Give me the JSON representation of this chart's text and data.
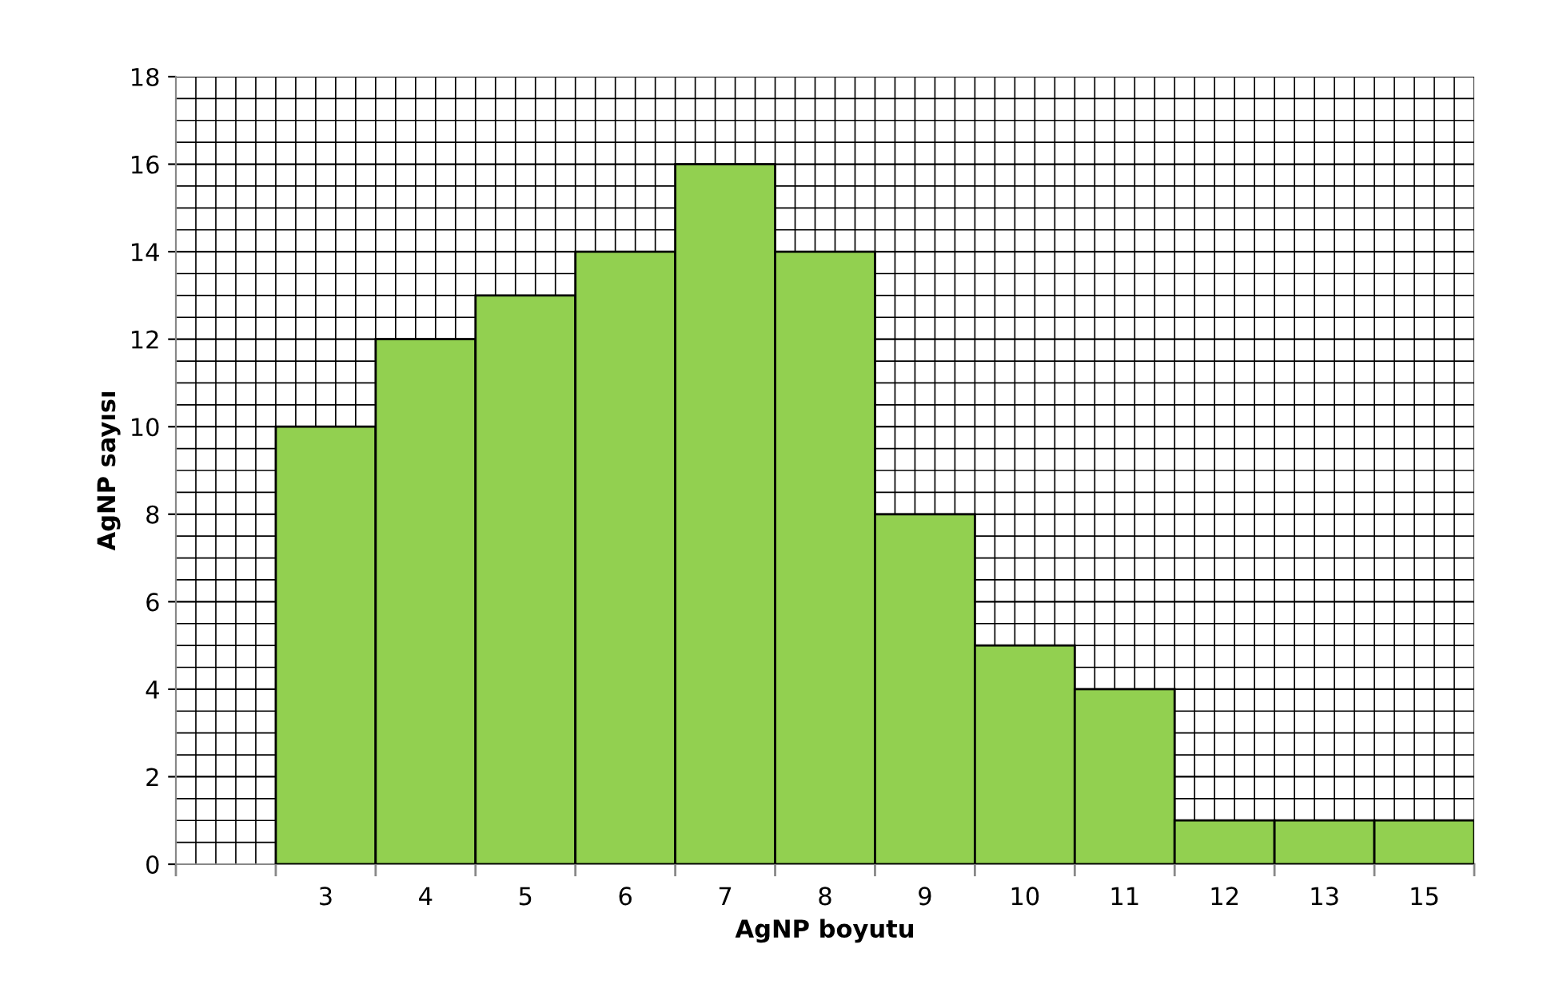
{
  "chart_data": {
    "type": "bar",
    "xlabel": "AgNP boyutu",
    "ylabel": "AgNP sayısı",
    "categories": [
      null,
      "3",
      "4",
      "5",
      "6",
      "7",
      "8",
      "9",
      "10",
      "11",
      "12",
      "13",
      "15"
    ],
    "values": [
      null,
      10,
      12,
      13,
      14,
      16,
      14,
      8,
      5,
      4,
      1,
      1,
      1
    ],
    "color": "#92d050",
    "ylim": [
      0,
      18
    ],
    "yticks": [
      0,
      2,
      4,
      6,
      8,
      10,
      12,
      14,
      16,
      18
    ],
    "grid": true
  }
}
